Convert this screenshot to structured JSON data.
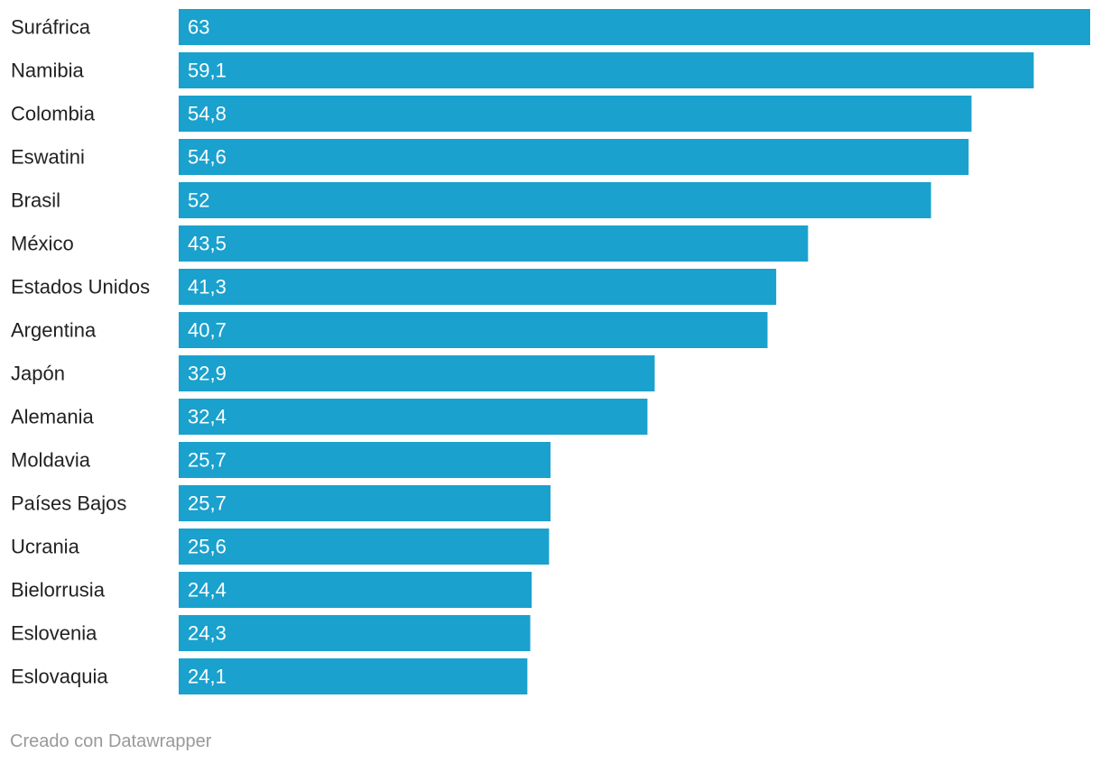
{
  "chart_data": {
    "type": "bar",
    "orientation": "horizontal",
    "categories": [
      "Suráfrica",
      "Namibia",
      "Colombia",
      "Eswatini",
      "Brasil",
      "México",
      "Estados Unidos",
      "Argentina",
      "Japón",
      "Alemania",
      "Moldavia",
      "Países Bajos",
      "Ucrania",
      "Bielorrusia",
      "Eslovenia",
      "Eslovaquia"
    ],
    "values": [
      63,
      59.1,
      54.8,
      54.6,
      52,
      43.5,
      41.3,
      40.7,
      32.9,
      32.4,
      25.7,
      25.7,
      25.6,
      24.4,
      24.3,
      24.1
    ],
    "value_labels": [
      "63",
      "59,1",
      "54,8",
      "54,6",
      "52",
      "43,5",
      "41,3",
      "40,7",
      "32,9",
      "32,4",
      "25,7",
      "25,7",
      "25,6",
      "24,4",
      "24,3",
      "24,1"
    ],
    "xlim": [
      0,
      63
    ],
    "grid": false,
    "bar_color": "#1aa1cd"
  },
  "footer": {
    "credit": "Creado con Datawrapper"
  },
  "colors": {
    "bar": "#1aa1cd",
    "label_text": "#222222",
    "value_text": "#ffffff",
    "credit_text": "#999999"
  }
}
